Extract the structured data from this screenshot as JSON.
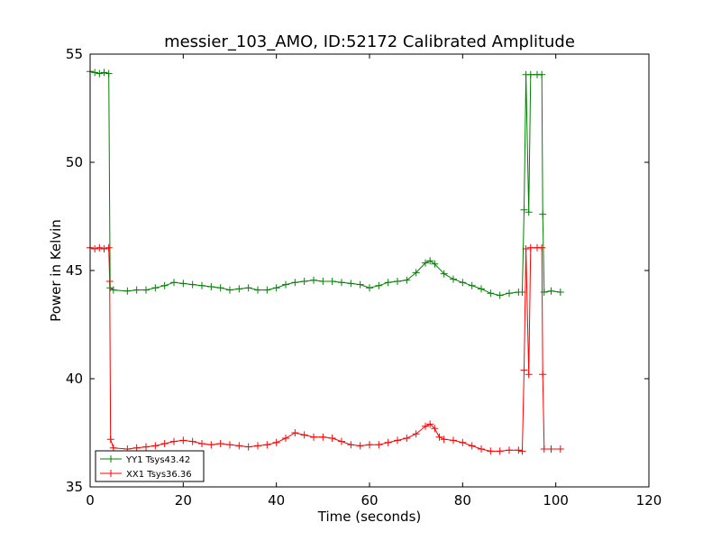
{
  "chart_data": {
    "type": "line",
    "title": "messier_103_AMO, ID:52172 Calibrated Amplitude",
    "xlabel": "Time (seconds)",
    "ylabel": "Power in Kelvin",
    "xlim": [
      0,
      120
    ],
    "ylim": [
      35,
      55
    ],
    "xticks": [
      0,
      20,
      40,
      60,
      80,
      100,
      120
    ],
    "yticks": [
      35,
      40,
      45,
      50,
      55
    ],
    "grid": false,
    "legend_position": "lower-left",
    "marker": "+",
    "series": [
      {
        "name": "YY1 Tsys43.42",
        "color": "#008000",
        "points": [
          [
            0,
            54.2
          ],
          [
            1,
            54.15
          ],
          [
            2,
            54.1
          ],
          [
            3,
            54.15
          ],
          [
            4,
            54.1
          ],
          [
            4.3,
            44.2
          ],
          [
            5,
            44.1
          ],
          [
            8,
            44.05
          ],
          [
            10,
            44.1
          ],
          [
            12,
            44.1
          ],
          [
            14,
            44.2
          ],
          [
            16,
            44.3
          ],
          [
            18,
            44.45
          ],
          [
            20,
            44.4
          ],
          [
            22,
            44.35
          ],
          [
            24,
            44.3
          ],
          [
            26,
            44.25
          ],
          [
            28,
            44.2
          ],
          [
            30,
            44.1
          ],
          [
            32,
            44.15
          ],
          [
            34,
            44.2
          ],
          [
            36,
            44.1
          ],
          [
            38,
            44.1
          ],
          [
            40,
            44.2
          ],
          [
            42,
            44.35
          ],
          [
            44,
            44.45
          ],
          [
            46,
            44.5
          ],
          [
            48,
            44.55
          ],
          [
            50,
            44.5
          ],
          [
            52,
            44.5
          ],
          [
            54,
            44.45
          ],
          [
            56,
            44.4
          ],
          [
            58,
            44.35
          ],
          [
            60,
            44.2
          ],
          [
            62,
            44.3
          ],
          [
            64,
            44.45
          ],
          [
            66,
            44.5
          ],
          [
            68,
            44.55
          ],
          [
            70,
            44.9
          ],
          [
            72,
            45.35
          ],
          [
            73,
            45.45
          ],
          [
            74,
            45.3
          ],
          [
            76,
            44.85
          ],
          [
            78,
            44.6
          ],
          [
            80,
            44.45
          ],
          [
            82,
            44.3
          ],
          [
            84,
            44.15
          ],
          [
            86,
            43.95
          ],
          [
            88,
            43.85
          ],
          [
            90,
            43.95
          ],
          [
            92,
            44.0
          ],
          [
            92.8,
            44.0
          ],
          [
            93.2,
            47.8
          ],
          [
            93.6,
            54.05
          ],
          [
            94.2,
            47.7
          ],
          [
            94.6,
            54.05
          ],
          [
            96,
            54.05
          ],
          [
            97,
            54.05
          ],
          [
            97.2,
            47.6
          ],
          [
            97.5,
            44.0
          ],
          [
            99,
            44.05
          ],
          [
            101,
            44.0
          ]
        ]
      },
      {
        "name": "XX1 Tsys36.36",
        "color": "#ff0000",
        "points": [
          [
            0,
            46.05
          ],
          [
            1,
            46.0
          ],
          [
            2,
            46.05
          ],
          [
            3,
            46.0
          ],
          [
            4,
            46.05
          ],
          [
            4.2,
            44.5
          ],
          [
            4.4,
            37.2
          ],
          [
            5,
            36.8
          ],
          [
            8,
            36.75
          ],
          [
            10,
            36.8
          ],
          [
            12,
            36.85
          ],
          [
            14,
            36.9
          ],
          [
            16,
            37.0
          ],
          [
            18,
            37.1
          ],
          [
            20,
            37.15
          ],
          [
            22,
            37.1
          ],
          [
            24,
            37.0
          ],
          [
            26,
            36.95
          ],
          [
            28,
            37.0
          ],
          [
            30,
            36.95
          ],
          [
            32,
            36.9
          ],
          [
            34,
            36.85
          ],
          [
            36,
            36.9
          ],
          [
            38,
            36.95
          ],
          [
            40,
            37.05
          ],
          [
            42,
            37.25
          ],
          [
            44,
            37.5
          ],
          [
            46,
            37.4
          ],
          [
            48,
            37.3
          ],
          [
            50,
            37.3
          ],
          [
            52,
            37.25
          ],
          [
            54,
            37.1
          ],
          [
            56,
            36.95
          ],
          [
            58,
            36.9
          ],
          [
            60,
            36.95
          ],
          [
            62,
            36.95
          ],
          [
            64,
            37.05
          ],
          [
            66,
            37.15
          ],
          [
            68,
            37.25
          ],
          [
            70,
            37.45
          ],
          [
            72,
            37.8
          ],
          [
            73,
            37.9
          ],
          [
            74,
            37.7
          ],
          [
            75,
            37.3
          ],
          [
            76,
            37.2
          ],
          [
            78,
            37.15
          ],
          [
            80,
            37.05
          ],
          [
            82,
            36.9
          ],
          [
            84,
            36.75
          ],
          [
            86,
            36.65
          ],
          [
            88,
            36.65
          ],
          [
            90,
            36.7
          ],
          [
            92,
            36.7
          ],
          [
            92.8,
            36.65
          ],
          [
            93.2,
            40.4
          ],
          [
            93.6,
            46.0
          ],
          [
            94.2,
            40.2
          ],
          [
            94.6,
            46.05
          ],
          [
            96,
            46.05
          ],
          [
            97,
            46.05
          ],
          [
            97.2,
            40.2
          ],
          [
            97.5,
            36.75
          ],
          [
            99,
            36.75
          ],
          [
            101,
            36.75
          ]
        ]
      }
    ]
  }
}
